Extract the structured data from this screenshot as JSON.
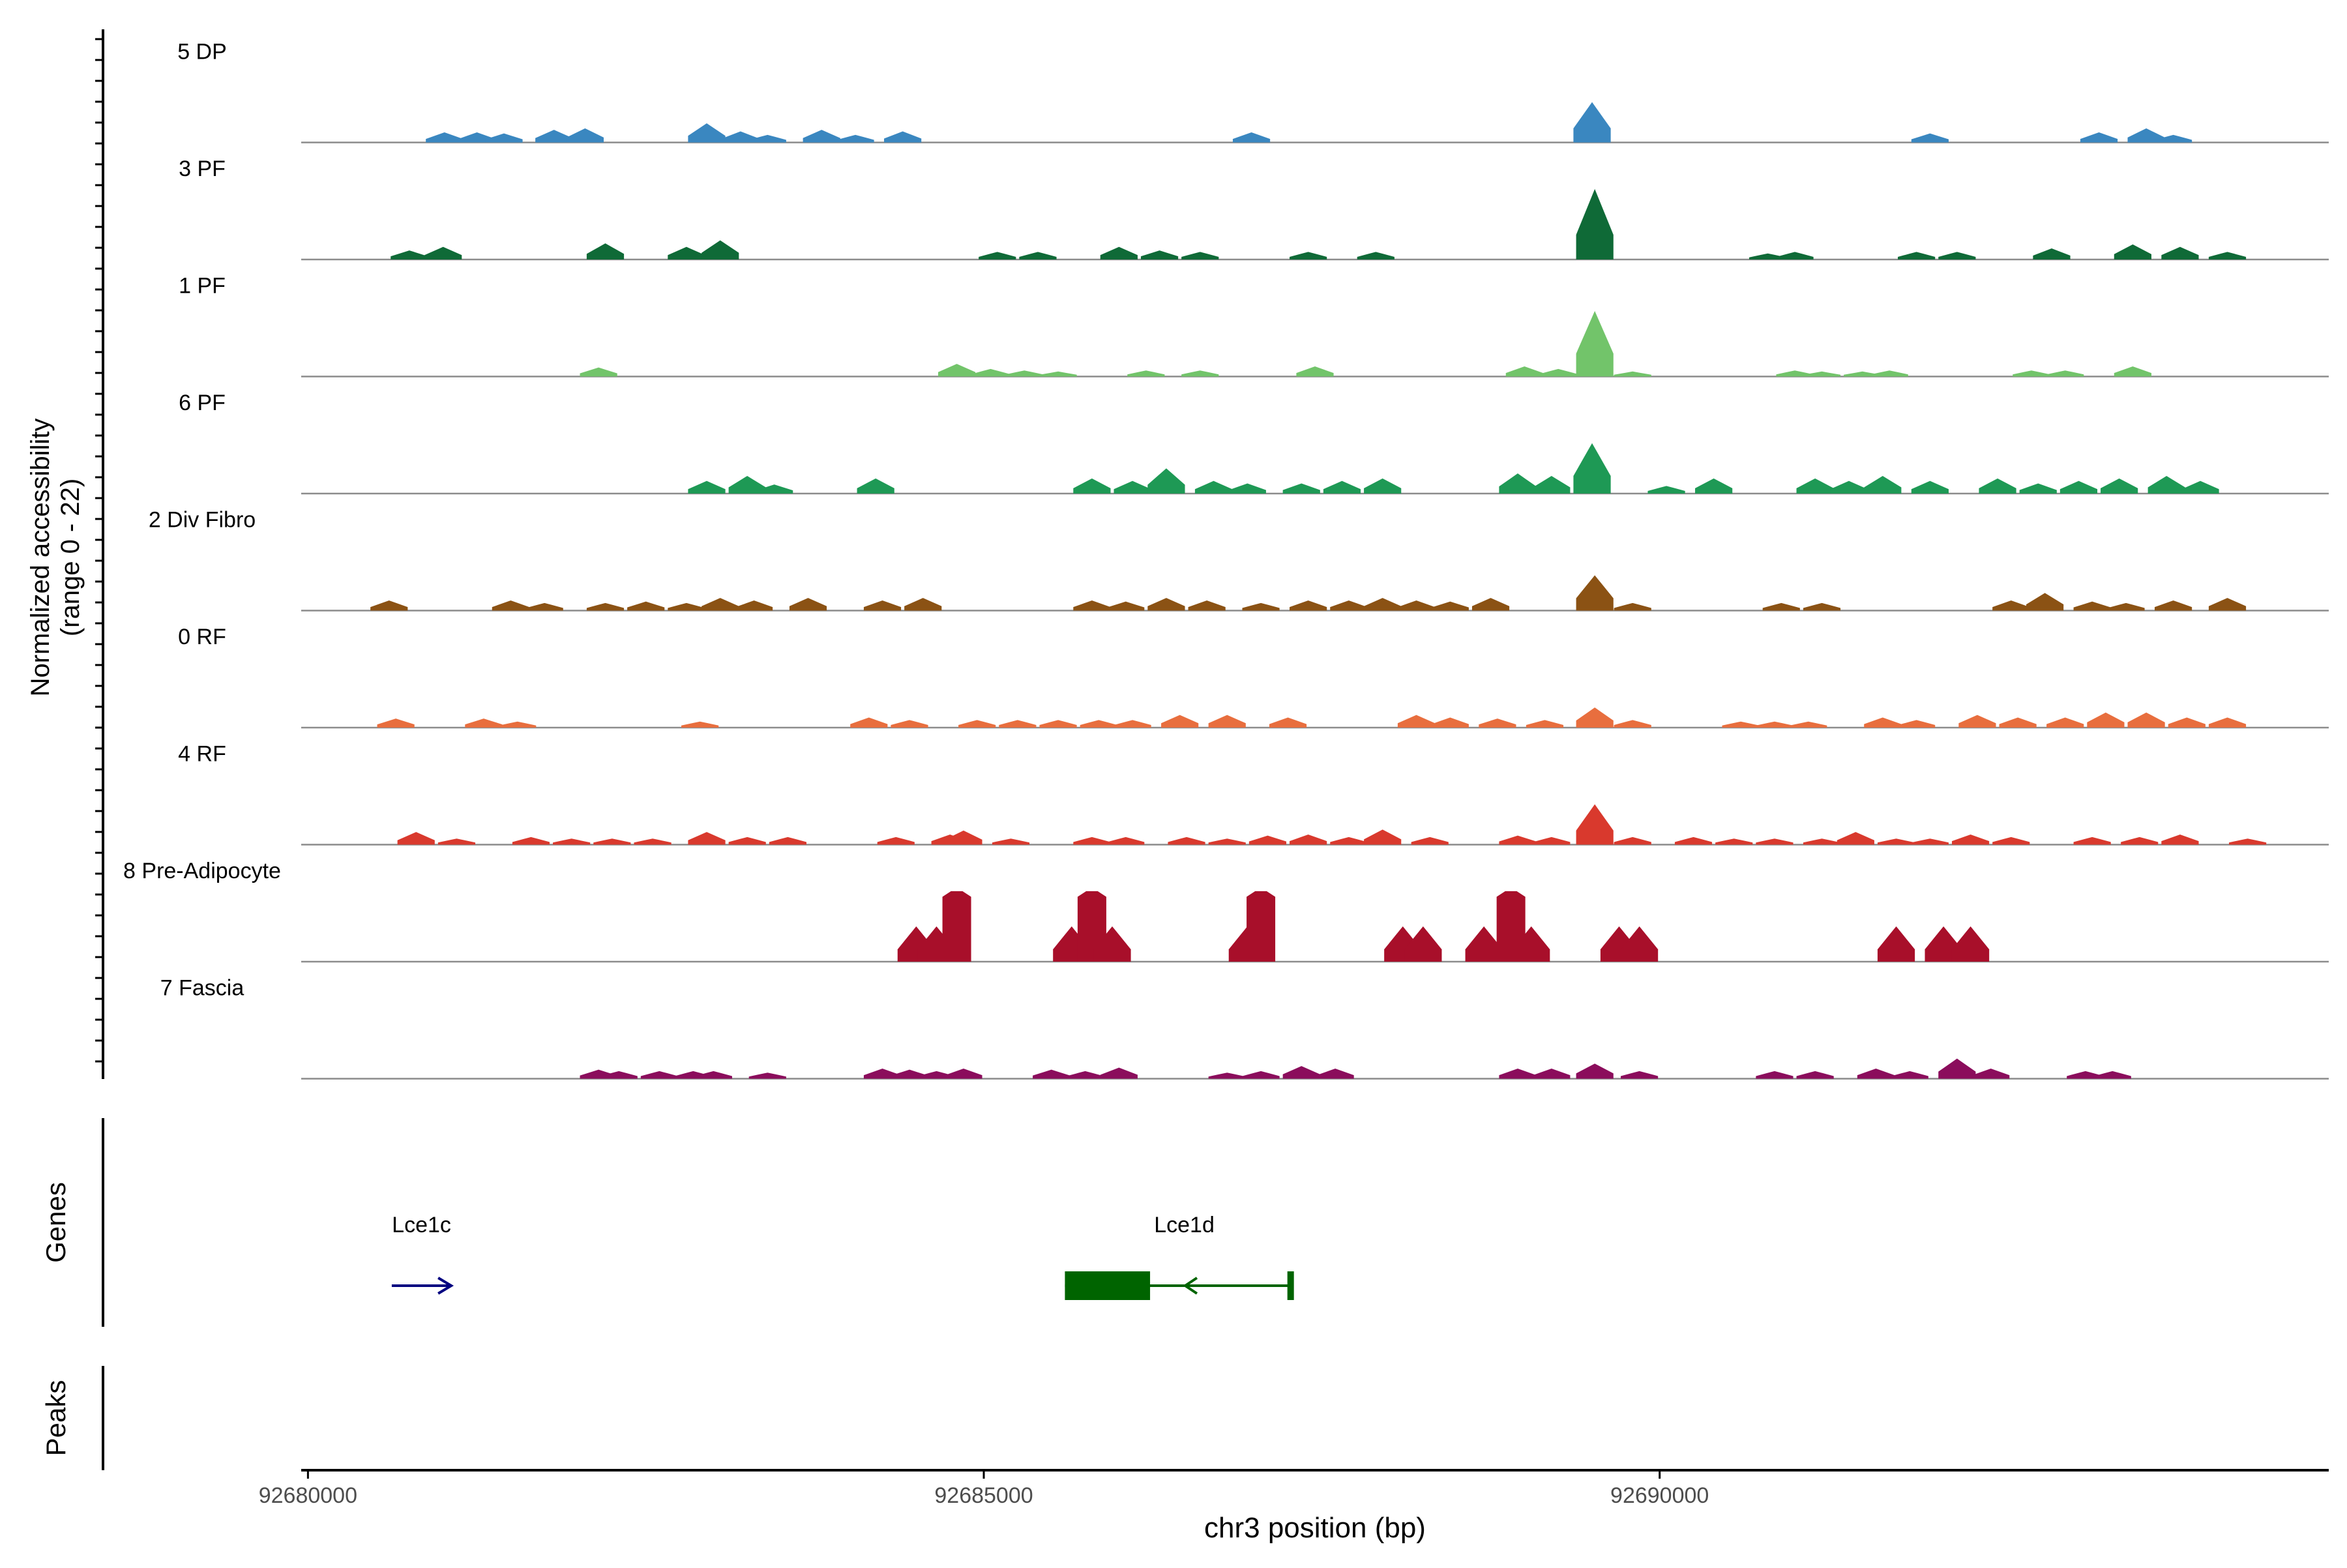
{
  "chart_data": {
    "type": "area",
    "title": "",
    "xlabel": "chr3 position (bp)",
    "ylabel_line1": "Normalized accessibility",
    "ylabel_line2": "(range 0 - 22)",
    "ylim": [
      0,
      22
    ],
    "xlim": [
      92679950,
      92694950
    ],
    "x_ticks": [
      {
        "value": 92680000,
        "label": "92680000"
      },
      {
        "value": 92685000,
        "label": "92685000"
      },
      {
        "value": 92690000,
        "label": "92690000"
      }
    ],
    "panel_labels": {
      "genes": "Genes",
      "peaks": "Peaks"
    },
    "series": [
      {
        "name": "5 DP",
        "color": "#3a87c0",
        "peaks": [
          [
            92681010,
            2.0
          ],
          [
            92681250,
            2.0
          ],
          [
            92681450,
            1.8
          ],
          [
            92681820,
            2.5
          ],
          [
            92682050,
            2.8
          ],
          [
            92682950,
            3.8
          ],
          [
            92683200,
            2.2
          ],
          [
            92683400,
            1.5
          ],
          [
            92683800,
            2.5
          ],
          [
            92684050,
            1.5
          ],
          [
            92684400,
            2.2
          ],
          [
            92686980,
            2.0
          ],
          [
            92689500,
            8.0
          ],
          [
            92692000,
            1.8
          ],
          [
            92693250,
            2.0
          ],
          [
            92693600,
            2.8
          ],
          [
            92693800,
            1.5
          ]
        ]
      },
      {
        "name": "3 PF",
        "color": "#0f6a37",
        "peaks": [
          [
            92680750,
            1.8
          ],
          [
            92681000,
            2.5
          ],
          [
            92682200,
            3.2
          ],
          [
            92682800,
            2.5
          ],
          [
            92683050,
            3.8
          ],
          [
            92685100,
            1.5
          ],
          [
            92685400,
            1.5
          ],
          [
            92686000,
            2.5
          ],
          [
            92686300,
            1.8
          ],
          [
            92686600,
            1.5
          ],
          [
            92687400,
            1.5
          ],
          [
            92687900,
            1.5
          ],
          [
            92689520,
            14.0
          ],
          [
            92690800,
            1.2
          ],
          [
            92691000,
            1.5
          ],
          [
            92691900,
            1.5
          ],
          [
            92692200,
            1.5
          ],
          [
            92692900,
            2.2
          ],
          [
            92693500,
            3.0
          ],
          [
            92693850,
            2.5
          ],
          [
            92694200,
            1.5
          ]
        ]
      },
      {
        "name": "1 PF",
        "color": "#72c46a",
        "peaks": [
          [
            92682150,
            1.8
          ],
          [
            92684800,
            2.5
          ],
          [
            92685050,
            1.5
          ],
          [
            92685300,
            1.2
          ],
          [
            92685550,
            1.0
          ],
          [
            92686200,
            1.2
          ],
          [
            92686600,
            1.2
          ],
          [
            92687450,
            2.0
          ],
          [
            92689000,
            2.0
          ],
          [
            92689250,
            1.5
          ],
          [
            92689520,
            13.0
          ],
          [
            92689800,
            1.0
          ],
          [
            92691000,
            1.2
          ],
          [
            92691200,
            1.0
          ],
          [
            92691500,
            1.0
          ],
          [
            92691700,
            1.2
          ],
          [
            92692750,
            1.2
          ],
          [
            92693000,
            1.2
          ],
          [
            92693500,
            2.0
          ]
        ]
      },
      {
        "name": "6 PF",
        "color": "#1e9955",
        "peaks": [
          [
            92682950,
            2.5
          ],
          [
            92683250,
            3.5
          ],
          [
            92683450,
            1.8
          ],
          [
            92684200,
            3.0
          ],
          [
            92685800,
            3.0
          ],
          [
            92686100,
            2.5
          ],
          [
            92686350,
            5.0
          ],
          [
            92686700,
            2.5
          ],
          [
            92686950,
            2.0
          ],
          [
            92687350,
            2.0
          ],
          [
            92687650,
            2.5
          ],
          [
            92687950,
            3.0
          ],
          [
            92688950,
            4.0
          ],
          [
            92689200,
            3.5
          ],
          [
            92689500,
            10.0
          ],
          [
            92690050,
            1.5
          ],
          [
            92690400,
            3.0
          ],
          [
            92691150,
            3.0
          ],
          [
            92691400,
            2.5
          ],
          [
            92691650,
            3.5
          ],
          [
            92692000,
            2.5
          ],
          [
            92692500,
            3.0
          ],
          [
            92692800,
            2.0
          ],
          [
            92693100,
            2.5
          ],
          [
            92693400,
            3.0
          ],
          [
            92693750,
            3.5
          ],
          [
            92694000,
            2.5
          ]
        ]
      },
      {
        "name": "2 Div Fibro",
        "color": "#8b5214",
        "peaks": [
          [
            92680600,
            2.0
          ],
          [
            92681500,
            2.0
          ],
          [
            92681750,
            1.5
          ],
          [
            92682200,
            1.5
          ],
          [
            92682500,
            1.8
          ],
          [
            92682800,
            1.5
          ],
          [
            92683050,
            2.5
          ],
          [
            92683300,
            2.0
          ],
          [
            92683700,
            2.5
          ],
          [
            92684250,
            2.0
          ],
          [
            92684550,
            2.5
          ],
          [
            92685800,
            2.0
          ],
          [
            92686050,
            1.8
          ],
          [
            92686350,
            2.5
          ],
          [
            92686650,
            2.0
          ],
          [
            92687050,
            1.5
          ],
          [
            92687400,
            2.0
          ],
          [
            92687700,
            2.0
          ],
          [
            92687950,
            2.5
          ],
          [
            92688200,
            2.0
          ],
          [
            92688450,
            1.8
          ],
          [
            92688750,
            2.5
          ],
          [
            92689520,
            7.0
          ],
          [
            92689800,
            1.5
          ],
          [
            92690900,
            1.5
          ],
          [
            92691200,
            1.5
          ],
          [
            92692600,
            2.0
          ],
          [
            92692850,
            3.5
          ],
          [
            92693200,
            1.8
          ],
          [
            92693450,
            1.5
          ],
          [
            92693800,
            2.0
          ],
          [
            92694200,
            2.5
          ]
        ]
      },
      {
        "name": "0 RF",
        "color": "#e86e3e",
        "peaks": [
          [
            92680650,
            1.8
          ],
          [
            92681300,
            1.8
          ],
          [
            92681550,
            1.2
          ],
          [
            92682900,
            1.2
          ],
          [
            92684150,
            2.0
          ],
          [
            92684450,
            1.5
          ],
          [
            92684950,
            1.5
          ],
          [
            92685250,
            1.5
          ],
          [
            92685550,
            1.5
          ],
          [
            92685850,
            1.5
          ],
          [
            92686100,
            1.5
          ],
          [
            92686450,
            2.5
          ],
          [
            92686800,
            2.5
          ],
          [
            92687250,
            2.0
          ],
          [
            92688200,
            2.5
          ],
          [
            92688450,
            2.0
          ],
          [
            92688800,
            1.8
          ],
          [
            92689150,
            1.5
          ],
          [
            92689520,
            4.0
          ],
          [
            92689800,
            1.5
          ],
          [
            92690600,
            1.2
          ],
          [
            92690850,
            1.2
          ],
          [
            92691100,
            1.2
          ],
          [
            92691650,
            2.0
          ],
          [
            92691900,
            1.5
          ],
          [
            92692350,
            2.5
          ],
          [
            92692650,
            2.0
          ],
          [
            92693000,
            2.0
          ],
          [
            92693300,
            3.0
          ],
          [
            92693600,
            3.0
          ],
          [
            92693900,
            2.0
          ],
          [
            92694200,
            2.0
          ]
        ]
      },
      {
        "name": "4 RF",
        "color": "#d9392d",
        "peaks": [
          [
            92680800,
            2.5
          ],
          [
            92681100,
            1.2
          ],
          [
            92681650,
            1.5
          ],
          [
            92681950,
            1.2
          ],
          [
            92682250,
            1.2
          ],
          [
            92682550,
            1.2
          ],
          [
            92682950,
            2.5
          ],
          [
            92683250,
            1.5
          ],
          [
            92683550,
            1.5
          ],
          [
            92684350,
            1.5
          ],
          [
            92684750,
            2.0
          ],
          [
            92684850,
            2.8
          ],
          [
            92685200,
            1.2
          ],
          [
            92685800,
            1.5
          ],
          [
            92686050,
            1.5
          ],
          [
            92686500,
            1.5
          ],
          [
            92686800,
            1.2
          ],
          [
            92687100,
            1.8
          ],
          [
            92687400,
            2.0
          ],
          [
            92687700,
            1.5
          ],
          [
            92687950,
            3.0
          ],
          [
            92688300,
            1.5
          ],
          [
            92688950,
            1.8
          ],
          [
            92689200,
            1.5
          ],
          [
            92689520,
            8.0
          ],
          [
            92689800,
            1.5
          ],
          [
            92690250,
            1.5
          ],
          [
            92690550,
            1.2
          ],
          [
            92690850,
            1.2
          ],
          [
            92691200,
            1.2
          ],
          [
            92691450,
            2.5
          ],
          [
            92691750,
            1.2
          ],
          [
            92692000,
            1.2
          ],
          [
            92692300,
            2.0
          ],
          [
            92692600,
            1.5
          ],
          [
            92693200,
            1.5
          ],
          [
            92693550,
            1.5
          ],
          [
            92693850,
            2.0
          ],
          [
            92694350,
            1.2
          ]
        ]
      },
      {
        "name": "8 Pre-Adipocyte",
        "color": "#a80f2a",
        "peaks": [
          [
            92684500,
            7.0
          ],
          [
            92684650,
            7.0
          ],
          [
            92684800,
            14.0
          ],
          [
            92685650,
            7.0
          ],
          [
            92685800,
            14.0
          ],
          [
            92685950,
            7.0
          ],
          [
            92686950,
            7.0
          ],
          [
            92687050,
            14.0
          ],
          [
            92688100,
            7.0
          ],
          [
            92688250,
            7.0
          ],
          [
            92688700,
            7.0
          ],
          [
            92688900,
            14.0
          ],
          [
            92689050,
            7.0
          ],
          [
            92689700,
            7.0
          ],
          [
            92689850,
            7.0
          ],
          [
            92691750,
            7.0
          ],
          [
            92692100,
            7.0
          ],
          [
            92692300,
            7.0
          ]
        ]
      },
      {
        "name": "7 Fascia",
        "color": "#8b0d5c",
        "peaks": [
          [
            92682150,
            1.8
          ],
          [
            92682300,
            1.5
          ],
          [
            92682600,
            1.5
          ],
          [
            92682850,
            1.5
          ],
          [
            92683000,
            1.5
          ],
          [
            92683400,
            1.2
          ],
          [
            92684250,
            2.0
          ],
          [
            92684450,
            1.8
          ],
          [
            92684650,
            1.5
          ],
          [
            92684850,
            2.0
          ],
          [
            92685500,
            1.8
          ],
          [
            92685750,
            1.5
          ],
          [
            92686000,
            2.2
          ],
          [
            92686800,
            1.2
          ],
          [
            92687050,
            1.5
          ],
          [
            92687350,
            2.5
          ],
          [
            92687600,
            2.0
          ],
          [
            92688950,
            2.0
          ],
          [
            92689200,
            2.0
          ],
          [
            92689520,
            3.0
          ],
          [
            92689850,
            1.5
          ],
          [
            92690850,
            1.5
          ],
          [
            92691150,
            1.5
          ],
          [
            92691600,
            2.0
          ],
          [
            92691850,
            1.5
          ],
          [
            92692200,
            4.0
          ],
          [
            92692450,
            2.0
          ],
          [
            92693150,
            1.5
          ],
          [
            92693350,
            1.5
          ]
        ]
      }
    ],
    "genes": [
      {
        "name": "Lce1c",
        "strand": "+",
        "color": "#000080",
        "start": 92680620,
        "end": 92681060
      },
      {
        "name": "Lce1d",
        "strand": "-",
        "color": "#006400",
        "start": 92685600,
        "end": 92687270,
        "exon_start": 92685600,
        "exon_end": 92686230
      }
    ],
    "peaks_track": []
  }
}
